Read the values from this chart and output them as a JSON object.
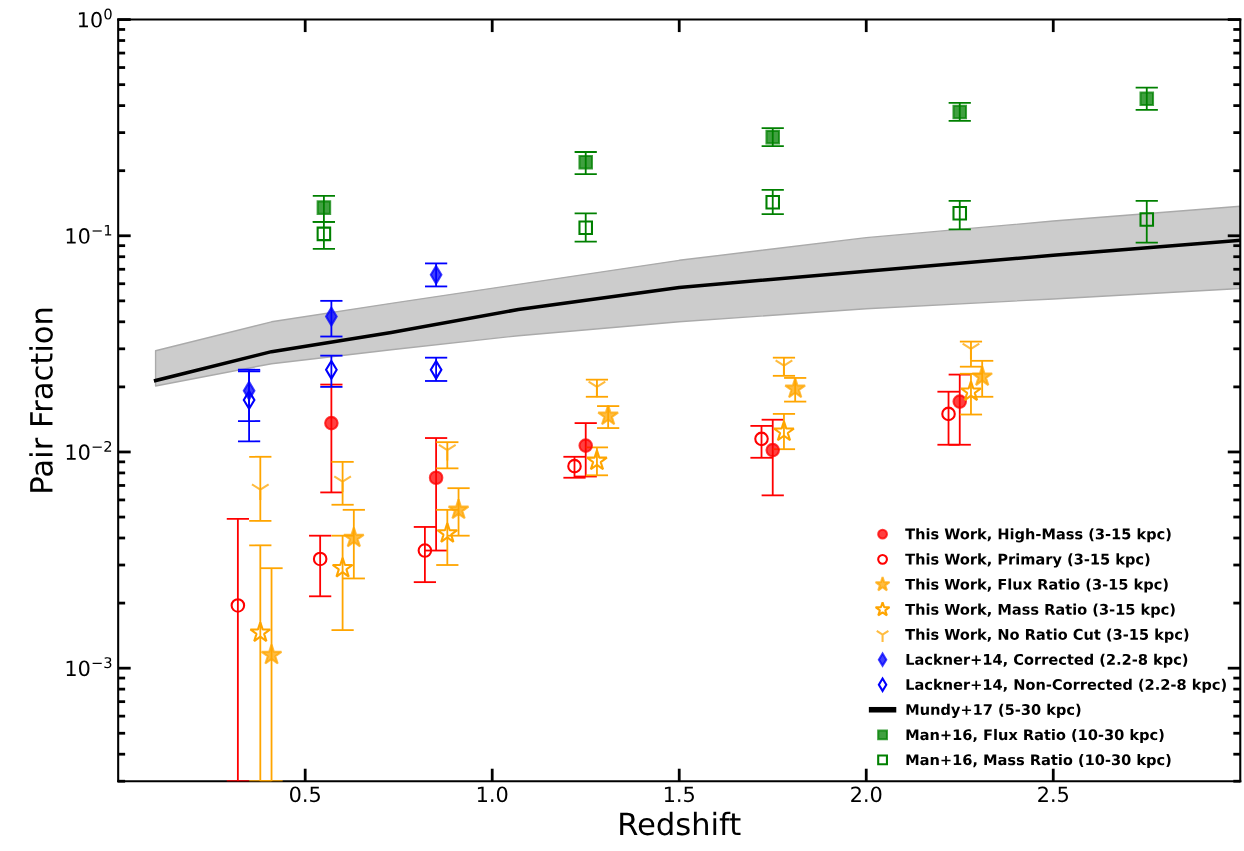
{
  "chart_data": {
    "type": "scatter",
    "xlabel": "Redshift",
    "ylabel": "Pair Fraction",
    "log": "y",
    "grid": false,
    "legend": "bottom right",
    "xlim": [
      0,
      3.0
    ],
    "xticks": [
      0.5,
      {
        "value": 1,
        "label": "1.0"
      },
      1.5,
      {
        "value": 2,
        "label": "2.0"
      },
      2.5
    ],
    "ylim": [
      0.0003,
      1
    ],
    "yticks": [
      {
        "value": 0.001,
        "label": "10$^{−3}$"
      },
      {
        "value": 0.01,
        "label": "10$^{−2}$"
      },
      {
        "value": 0.1,
        "label": "10$^{−1}$"
      },
      {
        "value": 1,
        "label": "10$^{0}$"
      }
    ],
    "series": [
      {
        "name": "This Work, High-Mass (3-15 kpc)",
        "color": "#ff0000",
        "marker": "circle",
        "x": [
          0.57,
          0.85,
          1.25,
          1.75,
          2.25
        ],
        "values": [
          0.0136,
          0.0076,
          0.0107,
          0.0102,
          0.0171
        ],
        "errors": [
          [
            0.0065,
            0.0205
          ],
          [
            0.0035,
            0.0116
          ],
          [
            0.0077,
            0.0136
          ],
          [
            0.0063,
            0.0141
          ],
          [
            0.0108,
            0.0228
          ]
        ]
      },
      {
        "name": "This Work, Primary (3-15 kpc)",
        "color": "#ff0000",
        "marker": "circle",
        "x": [
          0.32,
          0.54,
          0.82,
          1.22,
          1.72,
          2.22
        ],
        "values": [
          0.00195,
          0.0032,
          0.0035,
          0.0086,
          0.0115,
          0.015
        ],
        "errors": [
          [
            0.0003,
            0.0049
          ],
          [
            0.00215,
            0.0041
          ],
          [
            0.0025,
            0.0045
          ],
          [
            0.0076,
            0.0095
          ],
          [
            0.0094,
            0.0132
          ],
          [
            0.0108,
            0.019
          ]
        ]
      },
      {
        "name": "This Work, Flux Ratio (3-15 kpc)",
        "color": "#ffa500",
        "marker": "star",
        "x": [
          0.41,
          0.63,
          0.91,
          1.31,
          1.81,
          2.31
        ],
        "values": [
          0.00115,
          0.004,
          0.0054,
          0.0147,
          0.0196,
          0.0223
        ],
        "errors": [
          [
            0.0003,
            0.0029
          ],
          [
            0.0026,
            0.0054
          ],
          [
            0.0041,
            0.0068
          ],
          [
            0.0129,
            0.0163
          ],
          [
            0.0171,
            0.022
          ],
          [
            0.018,
            0.0264
          ]
        ]
      },
      {
        "name": "This Work, Mass Ratio (3-15 kpc)",
        "color": "#ffa500",
        "marker": "star",
        "x": [
          0.38,
          0.6,
          0.88,
          1.28,
          1.78,
          2.28
        ],
        "values": [
          0.00146,
          0.0029,
          0.0042,
          0.0091,
          0.0124,
          0.019
        ],
        "errors": [
          [
            0.0003,
            0.0037
          ],
          [
            0.0015,
            0.0041
          ],
          [
            0.003,
            0.0054
          ],
          [
            0.0078,
            0.0105
          ],
          [
            0.0103,
            0.015
          ],
          [
            0.0149,
            0.023
          ]
        ]
      },
      {
        "name": "This Work, No Ratio Cut (3-15 kpc)",
        "color": "#ffa500",
        "marker": "cross",
        "x": [
          0.38,
          0.6,
          0.88,
          1.28,
          1.78,
          2.28
        ],
        "values": [
          0.0067,
          0.0073,
          0.0102,
          0.02,
          0.0251,
          0.03
        ],
        "errors": [
          [
            0.0048,
            0.0095
          ],
          [
            0.0057,
            0.009
          ],
          [
            0.0084,
            0.0111
          ],
          [
            0.018,
            0.0216
          ],
          [
            0.0225,
            0.0273
          ],
          [
            0.0248,
            0.0324
          ]
        ]
      },
      {
        "name": "Lackner+14, Corrected (2.2-8 kpc)",
        "color": "#0000ff",
        "marker": "diamond",
        "x": [
          0.35,
          0.57,
          0.85
        ],
        "values": [
          0.0192,
          0.0423,
          0.066
        ],
        "errors": [
          [
            0.0139,
            0.024
          ],
          [
            0.0342,
            0.05
          ],
          [
            0.0583,
            0.0745
          ]
        ]
      },
      {
        "name": "Lackner+14, Non-Corrected (2.2-8 kpc)",
        "color": "#0000ff",
        "marker": "diamond",
        "x": [
          0.35,
          0.57,
          0.85
        ],
        "values": [
          0.0174,
          0.024,
          0.024
        ],
        "errors": [
          [
            0.0112,
            0.0236
          ],
          [
            0.02,
            0.0279
          ],
          [
            0.0213,
            0.0273
          ]
        ]
      },
      {
        "name": "Mundy+17 (5-30 kpc)",
        "type": "line",
        "color": "#000000",
        "marker": "none",
        "x": [
          0.1,
          0.41,
          0.73,
          1.07,
          1.5,
          2.0,
          2.5,
          3.0
        ],
        "values": [
          0.0214,
          0.0291,
          0.0357,
          0.0456,
          0.0577,
          0.0685,
          0.0812,
          0.0953
        ],
        "lower": [
          0.0202,
          0.0256,
          0.0297,
          0.0345,
          0.04,
          0.046,
          0.051,
          0.057
        ],
        "upper": [
          0.0294,
          0.04,
          0.0487,
          0.0596,
          0.077,
          0.098,
          0.117,
          0.137
        ]
      },
      {
        "name": "Man+16, Flux Ratio (10-30 kpc)",
        "color": "#008000",
        "marker": "square",
        "x": [
          0.55,
          1.25,
          1.75,
          2.25,
          2.75
        ],
        "values": [
          0.135,
          0.219,
          0.286,
          0.374,
          0.43
        ],
        "errors": [
          [
            0.116,
            0.153
          ],
          [
            0.193,
            0.244
          ],
          [
            0.26,
            0.315
          ],
          [
            0.34,
            0.412
          ],
          [
            0.382,
            0.484
          ]
        ]
      },
      {
        "name": "Man+16, Mass Ratio (10-30 kpc)",
        "color": "#008000",
        "marker": "square",
        "x": [
          0.55,
          1.25,
          1.75,
          2.25,
          2.75
        ],
        "values": [
          0.102,
          0.109,
          0.143,
          0.127,
          0.119
        ],
        "errors": [
          [
            0.087,
            0.116
          ],
          [
            0.094,
            0.127
          ],
          [
            0.126,
            0.163
          ],
          [
            0.107,
            0.145
          ],
          [
            0.093,
            0.145
          ]
        ]
      }
    ]
  }
}
